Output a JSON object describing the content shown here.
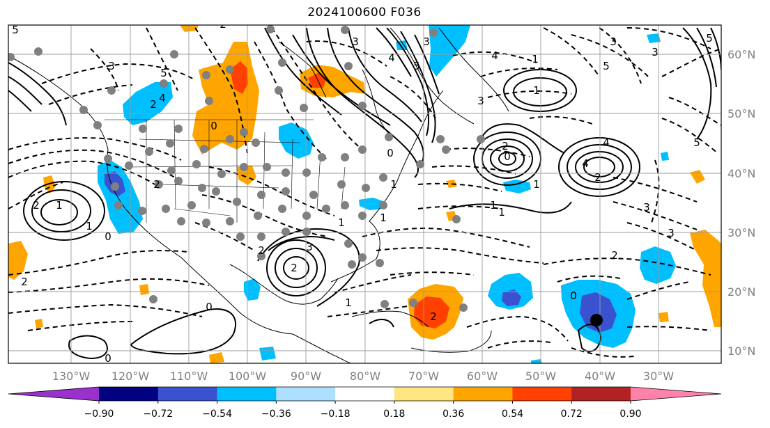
{
  "title": "2024100600 F036",
  "chart_data": {
    "type": "heatmap",
    "title": "2024100600 F036",
    "projection": "map",
    "lon_range": [
      -140,
      -20
    ],
    "lat_range": [
      8,
      65
    ],
    "lon_ticks": [
      {
        "value": -130,
        "label": "130°W"
      },
      {
        "value": -120,
        "label": "120°W"
      },
      {
        "value": -110,
        "label": "110°W"
      },
      {
        "value": -100,
        "label": "100°W"
      },
      {
        "value": -90,
        "label": "90°W"
      },
      {
        "value": -80,
        "label": "80°W"
      },
      {
        "value": -70,
        "label": "70°W"
      },
      {
        "value": -60,
        "label": "60°W"
      },
      {
        "value": -50,
        "label": "50°W"
      },
      {
        "value": -40,
        "label": "40°W"
      },
      {
        "value": -30,
        "label": "30°W"
      }
    ],
    "lat_ticks": [
      {
        "value": 10,
        "label": "10°N"
      },
      {
        "value": 20,
        "label": "20°N"
      },
      {
        "value": 30,
        "label": "30°N"
      },
      {
        "value": 40,
        "label": "40°N"
      },
      {
        "value": 50,
        "label": "50°N"
      },
      {
        "value": 60,
        "label": "60°N"
      }
    ],
    "grid": true,
    "colorbar": {
      "orientation": "horizontal",
      "extend": "both",
      "boundaries": [
        -0.9,
        -0.72,
        -0.54,
        -0.36,
        -0.18,
        0.18,
        0.36,
        0.54,
        0.72,
        0.9
      ],
      "tick_labels": [
        "−0.90",
        "−0.72",
        "−0.54",
        "−0.36",
        "−0.18",
        "0.18",
        "0.36",
        "0.54",
        "0.72",
        "0.90"
      ],
      "colors": [
        "#9932CC",
        "#000080",
        "#3A52CF",
        "#00BFFF",
        "#ADDFFF",
        "#FFFFFF",
        "#FFE680",
        "#FFA500",
        "#FF4000",
        "#B22222",
        "#FF82AB"
      ]
    },
    "contour_labels": [
      "5",
      "3",
      "4",
      "0",
      "2",
      "1",
      "2",
      "0",
      "1",
      "2",
      "3",
      "4",
      "5",
      "0",
      "1",
      "2",
      "1",
      "0",
      "2",
      "1",
      "2",
      "0",
      "3",
      "1",
      "1",
      "0",
      "2",
      "2",
      "3",
      "5",
      "4",
      "4",
      "2",
      "3",
      "5",
      "1",
      "3",
      "1",
      "2",
      "0",
      "1",
      "2",
      "3",
      "4",
      "5",
      "5",
      "1",
      "3",
      "3"
    ],
    "marker": {
      "lon": -41,
      "lat": 15
    }
  }
}
